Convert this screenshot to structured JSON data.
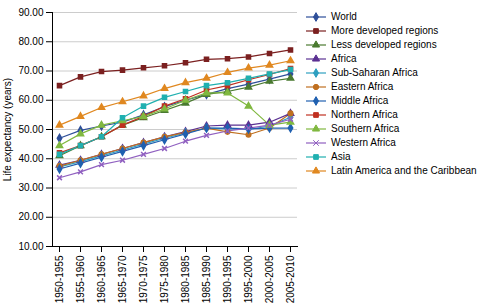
{
  "chart_data": {
    "type": "line",
    "categories": [
      "1950-1955",
      "1955-1960",
      "1960-1965",
      "1965-1970",
      "1970-1975",
      "1975-1980",
      "1980-1985",
      "1985-1990",
      "1990-1995",
      "1995-2000",
      "2000-2005",
      "2005-2010"
    ],
    "series": [
      {
        "name": "World",
        "color": "#2e4f99",
        "marker": "diamond",
        "values": [
          47.0,
          49.7,
          51.2,
          52.5,
          55.0,
          57.8,
          60.0,
          62.0,
          64.0,
          65.5,
          67.2,
          69.0
        ]
      },
      {
        "name": "More developed regions",
        "color": "#7b2020",
        "marker": "square",
        "values": [
          65.0,
          68.0,
          69.8,
          70.3,
          71.1,
          71.8,
          72.8,
          74.0,
          74.2,
          74.8,
          76.0,
          77.2
        ]
      },
      {
        "name": "Less developed regions",
        "color": "#4a7a30",
        "marker": "triangle",
        "values": [
          41.0,
          44.5,
          47.5,
          51.5,
          54.0,
          56.5,
          59.0,
          62.0,
          63.0,
          64.5,
          66.5,
          67.5
        ]
      },
      {
        "name": "Africa",
        "color": "#5b3192",
        "marker": "triangle",
        "values": [
          37.8,
          39.5,
          41.5,
          43.5,
          45.5,
          47.5,
          49.3,
          51.2,
          51.5,
          51.5,
          52.5,
          55.5
        ]
      },
      {
        "name": "Sub-Saharan Africa",
        "color": "#2e9fc0",
        "marker": "diamond",
        "values": [
          37.2,
          39.0,
          41.0,
          43.0,
          45.0,
          47.0,
          48.8,
          50.5,
          50.2,
          50.0,
          51.2,
          54.2
        ]
      },
      {
        "name": "Eastern Africa",
        "color": "#c07020",
        "marker": "circle",
        "values": [
          37.5,
          39.5,
          41.5,
          43.5,
          45.5,
          47.5,
          49.0,
          50.5,
          49.2,
          48.2,
          50.5,
          55.5
        ]
      },
      {
        "name": "Middle Africa",
        "color": "#2060b0",
        "marker": "diamond",
        "values": [
          36.5,
          38.5,
          40.5,
          42.5,
          44.5,
          46.5,
          48.5,
          50.5,
          50.5,
          50.2,
          50.5,
          50.5
        ]
      },
      {
        "name": "Northern Africa",
        "color": "#c03020",
        "marker": "square",
        "values": [
          42.0,
          44.5,
          47.5,
          51.5,
          54.5,
          58.0,
          60.5,
          63.5,
          65.0,
          67.0,
          68.8,
          70.8
        ]
      },
      {
        "name": "Southern Africa",
        "color": "#80b840",
        "marker": "triangle",
        "values": [
          44.5,
          48.5,
          51.5,
          53.0,
          54.5,
          57.0,
          60.0,
          62.5,
          62.5,
          58.0,
          51.5,
          52.5
        ]
      },
      {
        "name": "Western Africa",
        "color": "#9060c0",
        "marker": "x",
        "values": [
          33.5,
          35.5,
          38.0,
          39.5,
          41.5,
          43.5,
          46.0,
          48.0,
          49.5,
          50.5,
          51.5,
          53.5
        ]
      },
      {
        "name": "Asia",
        "color": "#20b0b0",
        "marker": "square",
        "values": [
          41.5,
          44.5,
          47.5,
          54.0,
          58.0,
          61.0,
          63.0,
          65.0,
          66.0,
          67.5,
          69.0,
          70.5
        ]
      },
      {
        "name": "Latin America and the Caribbean",
        "color": "#e08820",
        "marker": "triangle",
        "values": [
          51.5,
          54.5,
          57.5,
          59.5,
          61.5,
          64.0,
          66.0,
          67.5,
          69.5,
          71.0,
          72.0,
          73.5
        ]
      }
    ],
    "ylabel": "Life expectancy (years)",
    "ylim": [
      10,
      90
    ],
    "yticks": [
      {
        "value": 10,
        "label": "10.00"
      },
      {
        "value": 20,
        "label": "20.00"
      },
      {
        "value": 30,
        "label": "30.00"
      },
      {
        "value": 40,
        "label": "40.00"
      },
      {
        "value": 50,
        "label": "50.00"
      },
      {
        "value": 60,
        "label": "60.00"
      },
      {
        "value": 70,
        "label": "70.00"
      },
      {
        "value": 80,
        "label": "80.00"
      },
      {
        "value": 90,
        "label": "90.00"
      }
    ],
    "grid": true,
    "legend": "right"
  }
}
